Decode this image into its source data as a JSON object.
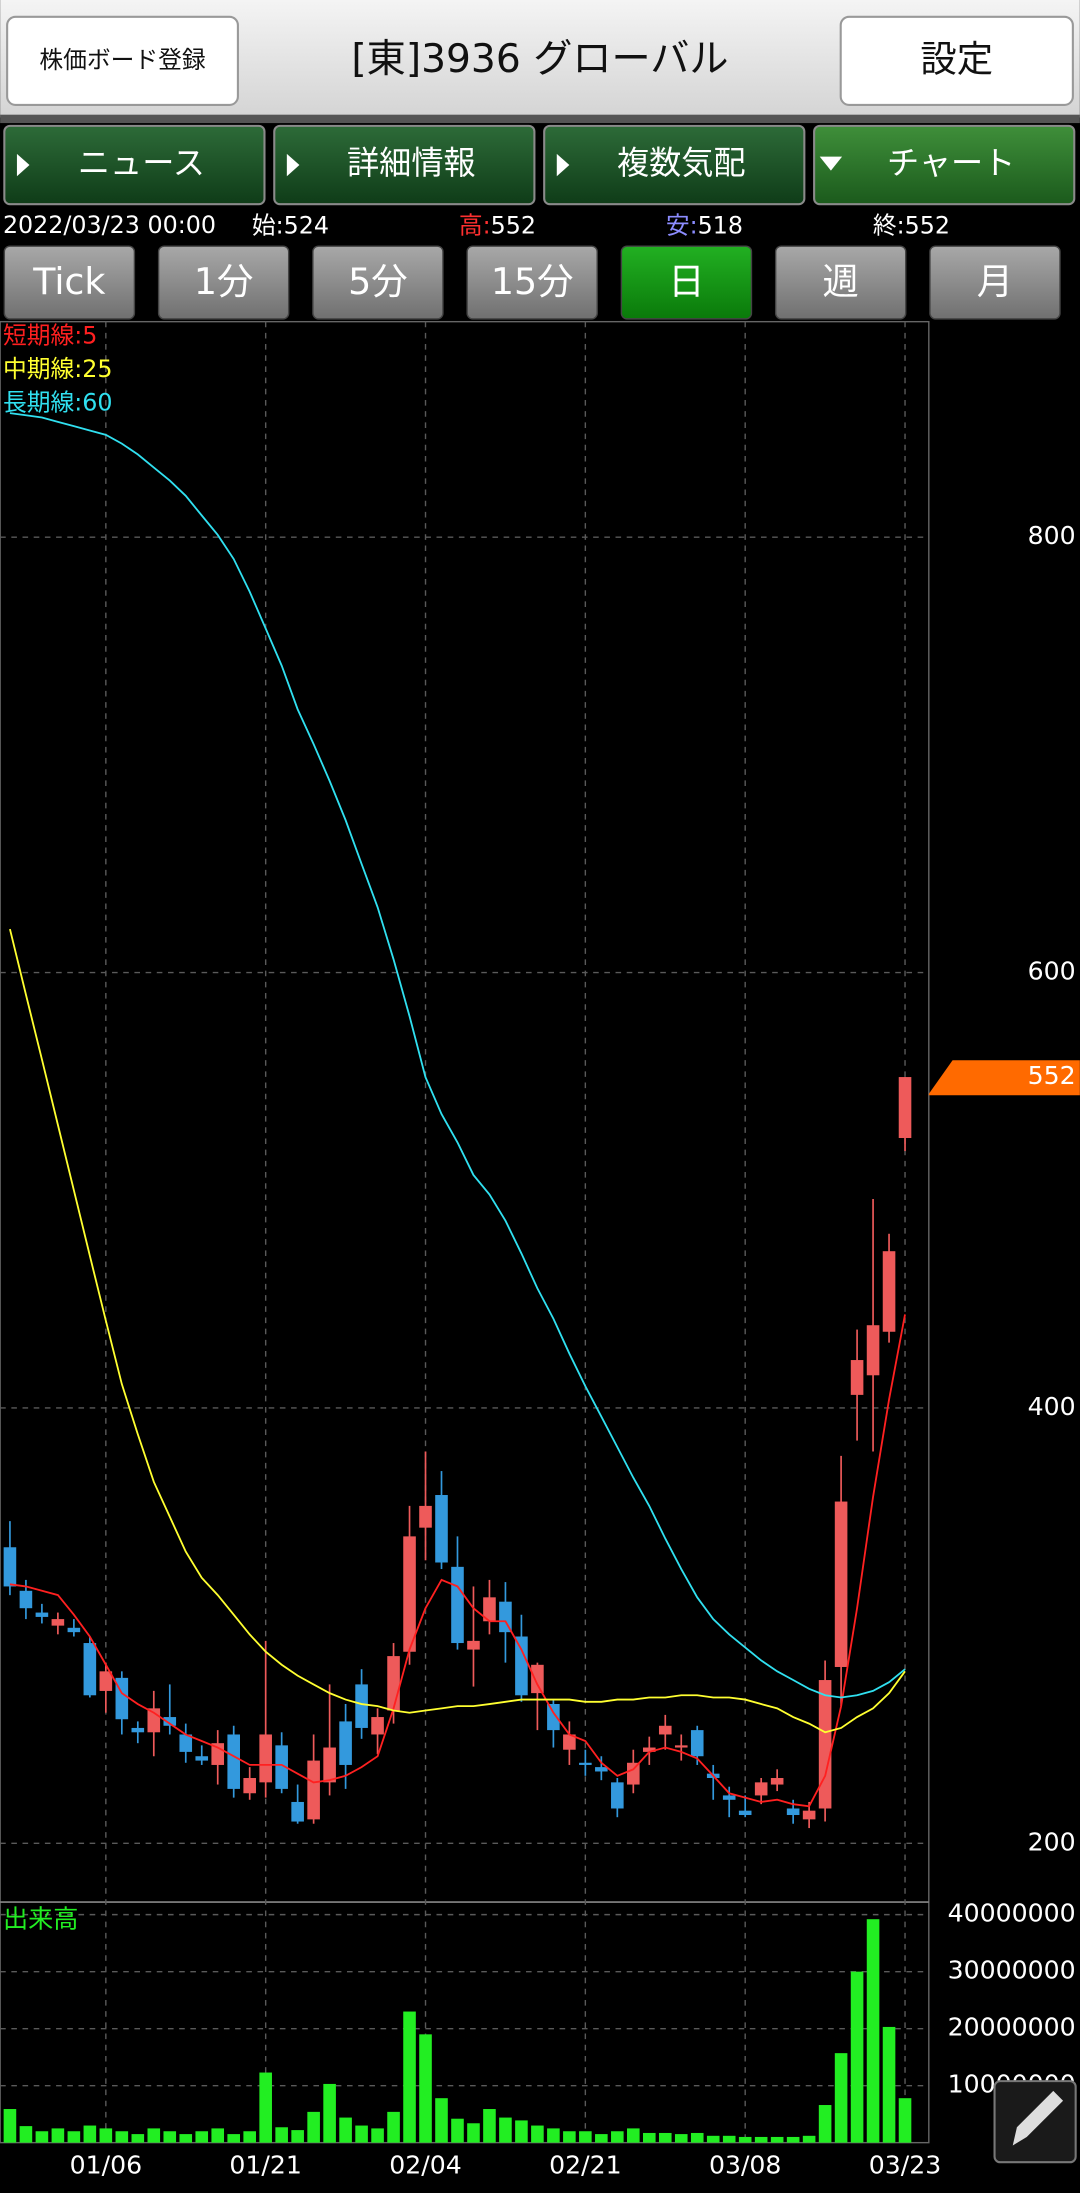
{
  "header": {
    "left_button": "株価ボード登録",
    "title": "[東]3936 グローバル",
    "right_button": "設定"
  },
  "tabs": [
    "ニュース",
    "詳細情報",
    "複数気配",
    "チャート"
  ],
  "info": {
    "datetime": "2022/03/23 00:00",
    "items": [
      {
        "label": "始:",
        "value": "524",
        "color": "#ffffff"
      },
      {
        "label": "高:",
        "value": "552",
        "color": "#ff3030"
      },
      {
        "label": "安:",
        "value": "518",
        "color": "#8c8cff"
      },
      {
        "label": "終:",
        "value": "552",
        "color": "#ffffff"
      }
    ]
  },
  "periods": [
    "Tick",
    "1分",
    "5分",
    "15分",
    "日",
    "週",
    "月"
  ],
  "chart_data": [
    {
      "type": "candlestick",
      "categories": [
        null,
        null,
        null,
        null,
        null,
        null,
        "01/06",
        null,
        null,
        null,
        null,
        null,
        null,
        null,
        null,
        null,
        "01/21",
        null,
        null,
        null,
        null,
        null,
        null,
        null,
        null,
        null,
        "02/04",
        null,
        null,
        null,
        null,
        null,
        null,
        null,
        null,
        null,
        "02/21",
        null,
        null,
        null,
        null,
        null,
        null,
        null,
        null,
        null,
        "03/08",
        null,
        null,
        null,
        null,
        null,
        null,
        null,
        null,
        null,
        "03/23"
      ],
      "open": [
        336,
        316,
        306,
        300,
        299,
        292,
        270,
        276,
        253,
        251,
        258,
        250,
        240,
        236,
        250,
        223,
        228,
        245,
        219,
        211,
        228,
        256,
        273,
        250,
        261,
        288,
        345,
        360,
        327,
        289,
        302,
        311,
        295,
        269,
        264,
        243,
        237,
        235,
        228,
        227,
        242,
        250,
        244,
        252,
        232,
        222,
        215,
        222,
        227,
        216,
        211,
        216,
        281,
        406,
        415,
        435,
        524
      ],
      "high": [
        348,
        321,
        310,
        306,
        303,
        295,
        283,
        279,
        256,
        270,
        273,
        255,
        245,
        252,
        254,
        235,
        293,
        251,
        227,
        250,
        273,
        264,
        280,
        262,
        292,
        355,
        380,
        371,
        341,
        318,
        321,
        320,
        305,
        283,
        266,
        256,
        243,
        240,
        230,
        243,
        249,
        259,
        250,
        254,
        236,
        226,
        222,
        230,
        234,
        220,
        219,
        284,
        378,
        436,
        496,
        480,
        552
      ],
      "low": [
        314,
        303,
        301,
        296,
        295,
        267,
        260,
        250,
        246,
        240,
        250,
        237,
        236,
        227,
        221,
        220,
        221,
        223,
        209,
        209,
        222,
        225,
        248,
        241,
        255,
        282,
        330,
        326,
        289,
        272,
        296,
        283,
        265,
        252,
        244,
        236,
        231,
        229,
        212,
        223,
        236,
        243,
        238,
        236,
        220,
        212,
        212,
        218,
        224,
        209,
        207,
        210,
        263,
        385,
        380,
        430,
        518
      ],
      "close": [
        318,
        308,
        304,
        303,
        297,
        268,
        279,
        257,
        251,
        262,
        254,
        242,
        238,
        246,
        225,
        230,
        250,
        225,
        210,
        238,
        244,
        236,
        253,
        258,
        286,
        341,
        355,
        329,
        292,
        293,
        313,
        297,
        268,
        282,
        252,
        250,
        236,
        233,
        216,
        237,
        244,
        254,
        245,
        240,
        230,
        220,
        213,
        228,
        230,
        213,
        215,
        275,
        357,
        422,
        438,
        472,
        552
      ],
      "up_color": "#ee5a5a",
      "down_color": "#3399dd",
      "series": [
        {
          "name": "短期線:5",
          "color": "#ff2020",
          "values": [
            319,
            318,
            316,
            314,
            305,
            295,
            282,
            269,
            264,
            260,
            255,
            250,
            247,
            244,
            240,
            236,
            236,
            236,
            232,
            228,
            229,
            231,
            235,
            240,
            262,
            289,
            308,
            321,
            318,
            308,
            302,
            302,
            289,
            273,
            260,
            250,
            247,
            237,
            231,
            234,
            242,
            244,
            242,
            239,
            231,
            223,
            221,
            219,
            220,
            218,
            217,
            231,
            263,
            308,
            359,
            404,
            443
          ]
        },
        {
          "name": "中期線:25",
          "color": "#ffff30",
          "values": [
            620,
            590,
            560,
            530,
            500,
            470,
            440,
            411,
            388,
            366,
            350,
            334,
            322,
            314,
            305,
            296,
            288,
            282,
            277,
            273,
            269,
            266,
            264,
            263,
            261,
            260,
            261,
            262,
            263,
            263,
            264,
            265,
            266,
            266,
            266,
            266,
            265,
            265,
            266,
            266,
            267,
            267,
            268,
            268,
            267,
            267,
            266,
            264,
            262,
            258,
            255,
            251,
            253,
            258,
            262,
            269,
            279
          ]
        },
        {
          "name": "長期線:60",
          "color": "#30e0f0",
          "values": [
            857,
            856,
            855,
            853,
            851,
            849,
            847,
            843,
            838,
            832,
            826,
            819,
            810,
            801,
            790,
            775,
            758,
            741,
            721,
            705,
            688,
            670,
            650,
            630,
            606,
            580,
            552,
            535,
            522,
            507,
            498,
            486,
            471,
            455,
            441,
            425,
            410,
            396,
            382,
            368,
            355,
            340,
            326,
            313,
            303,
            296,
            290,
            284,
            279,
            275,
            271,
            268,
            267,
            268,
            270,
            274,
            280
          ]
        }
      ],
      "ylim": [
        173,
        899
      ],
      "yticks": [
        200,
        400,
        600,
        800
      ],
      "grid": true,
      "last_price": 552,
      "last_price_color": "#ff6a00"
    },
    {
      "type": "bar",
      "title": "出来高",
      "categories": [
        null,
        null,
        null,
        null,
        null,
        null,
        "01/06",
        null,
        null,
        null,
        null,
        null,
        null,
        null,
        null,
        null,
        "01/21",
        null,
        null,
        null,
        null,
        null,
        null,
        null,
        null,
        null,
        "02/04",
        null,
        null,
        null,
        null,
        null,
        null,
        null,
        null,
        null,
        "02/21",
        null,
        null,
        null,
        null,
        null,
        null,
        null,
        null,
        null,
        "03/08",
        null,
        null,
        null,
        null,
        null,
        null,
        null,
        null,
        null,
        "03/23"
      ],
      "values": [
        5900000,
        2900000,
        2000000,
        2500000,
        2000000,
        3000000,
        2500000,
        2000000,
        1500000,
        2500000,
        2000000,
        1500000,
        2000000,
        2500000,
        1500000,
        2000000,
        12300000,
        2700000,
        2200000,
        5400000,
        10300000,
        4400000,
        3000000,
        2500000,
        5400000,
        23000000,
        19000000,
        7800000,
        4200000,
        3400000,
        5900000,
        4400000,
        3900000,
        3000000,
        2500000,
        2000000,
        2000000,
        1500000,
        2000000,
        2500000,
        1700000,
        1700000,
        1500000,
        1700000,
        1200000,
        1200000,
        1000000,
        1000000,
        1000000,
        1000000,
        1200000,
        6600000,
        15700000,
        30000000,
        39200000,
        20300000,
        7800000
      ],
      "color": "#22ee22",
      "ylim": [
        0,
        42200000
      ],
      "yticks": [
        10000000,
        20000000,
        30000000,
        40000000
      ],
      "grid": true
    }
  ]
}
